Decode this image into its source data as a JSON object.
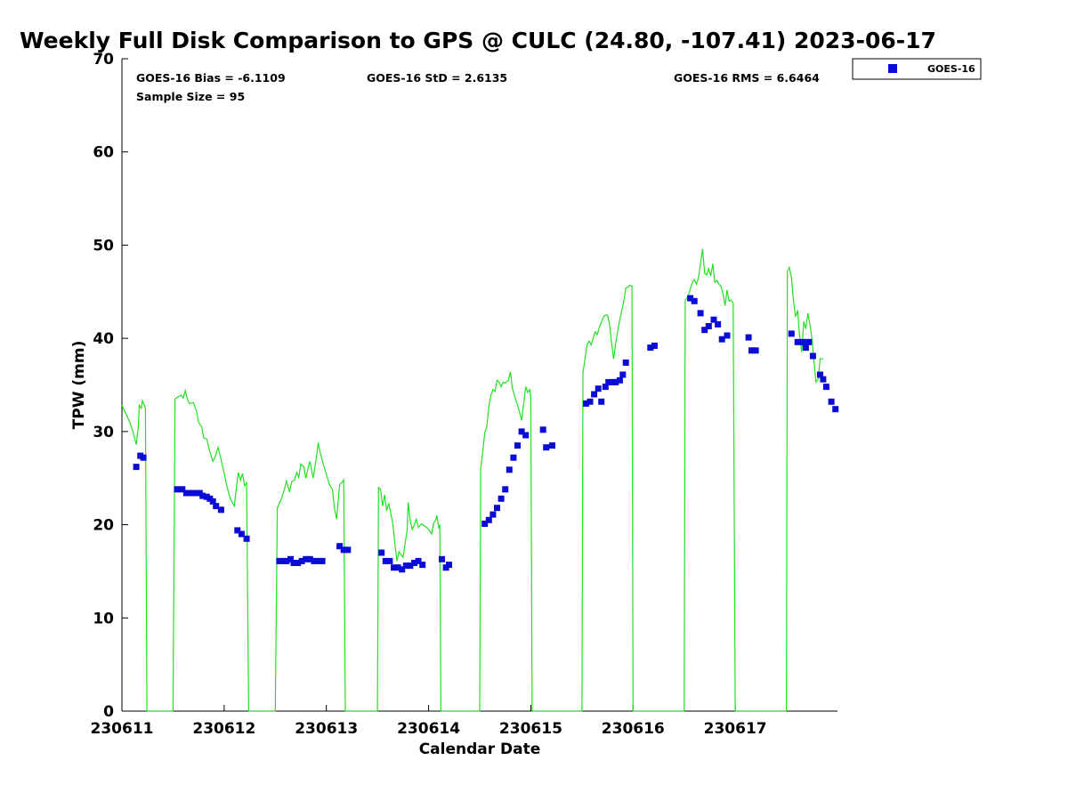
{
  "chart_data": {
    "type": "scatter",
    "title": "Weekly Full Disk Comparison to GPS @ CULC (24.80, -107.41) 2023-06-17",
    "xlabel": "Calendar Date",
    "ylabel": "TPW (mm)",
    "xlim": [
      0,
      7
    ],
    "ylim": [
      0,
      70
    ],
    "x_ticks": [
      0,
      1,
      2,
      3,
      4,
      5,
      6
    ],
    "x_tick_labels": [
      "230611",
      "230612",
      "230613",
      "230614",
      "230615",
      "230616",
      "230617"
    ],
    "y_ticks": [
      0,
      10,
      20,
      30,
      40,
      50,
      60,
      70
    ],
    "y_tick_labels": [
      "0",
      "10",
      "20",
      "30",
      "40",
      "50",
      "60",
      "70"
    ],
    "x_unit": "days since 230611",
    "stats": {
      "bias": "GOES-16 Bias = -6.1109",
      "std": "GOES-16 StD = 2.6135",
      "rms": "GOES-16 RMS = 6.6464",
      "sample": "Sample Size = 95"
    },
    "legend": {
      "placement": "outside-top-right",
      "entries": [
        "GOES-16"
      ]
    },
    "series": [
      {
        "name": "GOES-16",
        "kind": "markers",
        "color": "#0b0bd6",
        "points": [
          [
            0.14,
            26.2
          ],
          [
            0.18,
            27.4
          ],
          [
            0.21,
            27.2
          ],
          [
            0.54,
            23.8
          ],
          [
            0.59,
            23.8
          ],
          [
            0.63,
            23.4
          ],
          [
            0.68,
            23.4
          ],
          [
            0.72,
            23.4
          ],
          [
            0.76,
            23.4
          ],
          [
            0.79,
            23.1
          ],
          [
            0.83,
            23.0
          ],
          [
            0.86,
            22.8
          ],
          [
            0.89,
            22.5
          ],
          [
            0.92,
            22.0
          ],
          [
            0.97,
            21.6
          ],
          [
            1.13,
            19.4
          ],
          [
            1.17,
            19.0
          ],
          [
            1.22,
            18.5
          ],
          [
            1.54,
            16.1
          ],
          [
            1.58,
            16.1
          ],
          [
            1.61,
            16.1
          ],
          [
            1.65,
            16.3
          ],
          [
            1.68,
            15.9
          ],
          [
            1.72,
            15.9
          ],
          [
            1.76,
            16.1
          ],
          [
            1.8,
            16.3
          ],
          [
            1.84,
            16.3
          ],
          [
            1.88,
            16.1
          ],
          [
            1.92,
            16.1
          ],
          [
            1.96,
            16.1
          ],
          [
            2.13,
            17.7
          ],
          [
            2.17,
            17.3
          ],
          [
            2.21,
            17.3
          ],
          [
            2.54,
            17.0
          ],
          [
            2.58,
            16.1
          ],
          [
            2.62,
            16.1
          ],
          [
            2.66,
            15.4
          ],
          [
            2.7,
            15.4
          ],
          [
            2.74,
            15.2
          ],
          [
            2.78,
            15.6
          ],
          [
            2.82,
            15.6
          ],
          [
            2.86,
            15.9
          ],
          [
            2.9,
            16.1
          ],
          [
            2.94,
            15.7
          ],
          [
            3.13,
            16.3
          ],
          [
            3.17,
            15.4
          ],
          [
            3.2,
            15.7
          ],
          [
            3.55,
            20.1
          ],
          [
            3.59,
            20.5
          ],
          [
            3.63,
            21.1
          ],
          [
            3.67,
            21.8
          ],
          [
            3.71,
            22.8
          ],
          [
            3.75,
            23.8
          ],
          [
            3.79,
            25.9
          ],
          [
            3.83,
            27.2
          ],
          [
            3.87,
            28.5
          ],
          [
            3.91,
            30.0
          ],
          [
            3.95,
            29.6
          ],
          [
            4.12,
            30.2
          ],
          [
            4.15,
            28.3
          ],
          [
            4.21,
            28.5
          ],
          [
            4.54,
            33.0
          ],
          [
            4.58,
            33.2
          ],
          [
            4.62,
            34.0
          ],
          [
            4.66,
            34.6
          ],
          [
            4.69,
            33.2
          ],
          [
            4.73,
            34.8
          ],
          [
            4.76,
            35.3
          ],
          [
            4.8,
            35.3
          ],
          [
            4.83,
            35.3
          ],
          [
            4.87,
            35.5
          ],
          [
            4.9,
            36.1
          ],
          [
            4.93,
            37.4
          ],
          [
            5.17,
            39.0
          ],
          [
            5.21,
            39.2
          ],
          [
            5.56,
            44.3
          ],
          [
            5.6,
            44.0
          ],
          [
            5.66,
            42.7
          ],
          [
            5.7,
            40.9
          ],
          [
            5.74,
            41.3
          ],
          [
            5.79,
            42.0
          ],
          [
            5.83,
            41.5
          ],
          [
            5.87,
            39.9
          ],
          [
            5.92,
            40.3
          ],
          [
            6.13,
            40.1
          ],
          [
            6.16,
            38.7
          ],
          [
            6.2,
            38.7
          ],
          [
            6.55,
            40.5
          ],
          [
            6.61,
            39.6
          ],
          [
            6.66,
            39.6
          ],
          [
            6.69,
            39.0
          ],
          [
            6.72,
            39.6
          ],
          [
            6.76,
            38.1
          ],
          [
            6.83,
            36.1
          ],
          [
            6.86,
            35.6
          ],
          [
            6.89,
            34.8
          ],
          [
            6.94,
            33.2
          ],
          [
            6.98,
            32.4
          ]
        ]
      },
      {
        "name": "",
        "kind": "line",
        "color": "#22e022",
        "points": [
          [
            0.0,
            32.8
          ],
          [
            0.04,
            31.9
          ],
          [
            0.08,
            30.9
          ],
          [
            0.11,
            29.9
          ],
          [
            0.14,
            28.6
          ],
          [
            0.16,
            30.5
          ],
          [
            0.17,
            32.8
          ],
          [
            0.19,
            32.5
          ],
          [
            0.2,
            33.3
          ],
          [
            0.22,
            32.8
          ],
          [
            0.23,
            32.5
          ],
          [
            0.245,
            0.0
          ],
          [
            0.5,
            0.0
          ],
          [
            0.52,
            33.5
          ],
          [
            0.56,
            33.8
          ],
          [
            0.58,
            33.9
          ],
          [
            0.6,
            33.6
          ],
          [
            0.62,
            34.4
          ],
          [
            0.64,
            33.5
          ],
          [
            0.66,
            33.0
          ],
          [
            0.7,
            33.1
          ],
          [
            0.73,
            32.2
          ],
          [
            0.75,
            31.0
          ],
          [
            0.78,
            30.5
          ],
          [
            0.8,
            29.3
          ],
          [
            0.83,
            29.2
          ],
          [
            0.86,
            27.8
          ],
          [
            0.89,
            26.8
          ],
          [
            0.91,
            27.2
          ],
          [
            0.94,
            28.3
          ],
          [
            0.97,
            27.0
          ],
          [
            1.0,
            25.5
          ],
          [
            1.03,
            24.0
          ],
          [
            1.06,
            22.8
          ],
          [
            1.1,
            22.0
          ],
          [
            1.12,
            24.0
          ],
          [
            1.14,
            25.6
          ],
          [
            1.16,
            24.8
          ],
          [
            1.18,
            25.5
          ],
          [
            1.2,
            24.2
          ],
          [
            1.22,
            24.5
          ],
          [
            1.24,
            0.0
          ],
          [
            1.5,
            0.0
          ],
          [
            1.52,
            21.8
          ],
          [
            1.56,
            22.8
          ],
          [
            1.59,
            23.8
          ],
          [
            1.61,
            24.7
          ],
          [
            1.64,
            23.5
          ],
          [
            1.66,
            24.6
          ],
          [
            1.69,
            24.8
          ],
          [
            1.71,
            25.6
          ],
          [
            1.73,
            25.1
          ],
          [
            1.75,
            26.5
          ],
          [
            1.78,
            26.2
          ],
          [
            1.8,
            25.0
          ],
          [
            1.82,
            26.0
          ],
          [
            1.84,
            26.8
          ],
          [
            1.87,
            25.0
          ],
          [
            1.9,
            27.0
          ],
          [
            1.92,
            28.8
          ],
          [
            1.94,
            27.7
          ],
          [
            1.97,
            26.5
          ],
          [
            2.0,
            25.4
          ],
          [
            2.03,
            24.3
          ],
          [
            2.06,
            23.8
          ],
          [
            2.08,
            21.7
          ],
          [
            2.1,
            20.6
          ],
          [
            2.13,
            24.3
          ],
          [
            2.15,
            24.5
          ],
          [
            2.17,
            24.8
          ],
          [
            2.185,
            0.0
          ],
          [
            2.5,
            0.0
          ],
          [
            2.51,
            24.0
          ],
          [
            2.53,
            23.8
          ],
          [
            2.55,
            22.0
          ],
          [
            2.57,
            23.2
          ],
          [
            2.59,
            21.5
          ],
          [
            2.61,
            22.3
          ],
          [
            2.63,
            21.2
          ],
          [
            2.65,
            20.1
          ],
          [
            2.67,
            18.0
          ],
          [
            2.69,
            16.1
          ],
          [
            2.71,
            17.1
          ],
          [
            2.73,
            16.8
          ],
          [
            2.75,
            16.5
          ],
          [
            2.77,
            18.0
          ],
          [
            2.79,
            19.4
          ],
          [
            2.8,
            22.4
          ],
          [
            2.82,
            20.5
          ],
          [
            2.84,
            19.5
          ],
          [
            2.86,
            20.0
          ],
          [
            2.88,
            20.6
          ],
          [
            2.9,
            19.7
          ],
          [
            2.93,
            20.1
          ],
          [
            2.97,
            19.8
          ],
          [
            3.0,
            19.5
          ],
          [
            3.03,
            19.0
          ],
          [
            3.05,
            20.2
          ],
          [
            3.07,
            20.5
          ],
          [
            3.08,
            21.0
          ],
          [
            3.1,
            19.6
          ],
          [
            3.11,
            20.0
          ],
          [
            3.12,
            0.0
          ],
          [
            3.5,
            0.0
          ],
          [
            3.51,
            26.0
          ],
          [
            3.53,
            27.8
          ],
          [
            3.55,
            29.9
          ],
          [
            3.57,
            30.5
          ],
          [
            3.59,
            32.7
          ],
          [
            3.61,
            33.9
          ],
          [
            3.63,
            34.5
          ],
          [
            3.65,
            34.3
          ],
          [
            3.67,
            35.5
          ],
          [
            3.69,
            35.3
          ],
          [
            3.71,
            34.8
          ],
          [
            3.73,
            35.3
          ],
          [
            3.75,
            35.2
          ],
          [
            3.78,
            35.5
          ],
          [
            3.8,
            36.4
          ],
          [
            3.82,
            34.6
          ],
          [
            3.85,
            33.5
          ],
          [
            3.88,
            32.5
          ],
          [
            3.91,
            31.2
          ],
          [
            3.93,
            33.0
          ],
          [
            3.95,
            34.8
          ],
          [
            3.97,
            34.2
          ],
          [
            3.99,
            34.5
          ],
          [
            4.0,
            33.6
          ],
          [
            4.013,
            0.0
          ],
          [
            4.5,
            0.0
          ],
          [
            4.51,
            36.3
          ],
          [
            4.53,
            37.8
          ],
          [
            4.55,
            39.3
          ],
          [
            4.57,
            39.7
          ],
          [
            4.59,
            39.3
          ],
          [
            4.61,
            40.0
          ],
          [
            4.63,
            40.7
          ],
          [
            4.65,
            40.4
          ],
          [
            4.67,
            41.2
          ],
          [
            4.69,
            41.7
          ],
          [
            4.71,
            42.3
          ],
          [
            4.73,
            42.5
          ],
          [
            4.75,
            42.5
          ],
          [
            4.77,
            41.5
          ],
          [
            4.79,
            39.5
          ],
          [
            4.81,
            37.8
          ],
          [
            4.83,
            39.5
          ],
          [
            4.85,
            40.8
          ],
          [
            4.87,
            42.0
          ],
          [
            4.89,
            43.0
          ],
          [
            4.91,
            44.0
          ],
          [
            4.93,
            45.4
          ],
          [
            4.95,
            45.5
          ],
          [
            4.97,
            45.7
          ],
          [
            4.99,
            45.6
          ],
          [
            5.0,
            0.0
          ],
          [
            5.5,
            0.0
          ],
          [
            5.51,
            44.1
          ],
          [
            5.54,
            44.5
          ],
          [
            5.56,
            45.3
          ],
          [
            5.58,
            46.0
          ],
          [
            5.6,
            46.3
          ],
          [
            5.62,
            45.8
          ],
          [
            5.64,
            46.5
          ],
          [
            5.66,
            48.0
          ],
          [
            5.68,
            49.6
          ],
          [
            5.7,
            47.0
          ],
          [
            5.72,
            46.8
          ],
          [
            5.74,
            47.5
          ],
          [
            5.76,
            46.7
          ],
          [
            5.78,
            48.0
          ],
          [
            5.8,
            46.0
          ],
          [
            5.82,
            46.2
          ],
          [
            5.84,
            45.8
          ],
          [
            5.86,
            45.6
          ],
          [
            5.88,
            44.8
          ],
          [
            5.9,
            43.5
          ],
          [
            5.92,
            45.2
          ],
          [
            5.94,
            44.0
          ],
          [
            5.96,
            44.1
          ],
          [
            5.98,
            43.8
          ],
          [
            6.0,
            0.0
          ],
          [
            6.5,
            0.0
          ],
          [
            6.51,
            47.2
          ],
          [
            6.53,
            47.6
          ],
          [
            6.55,
            46.5
          ],
          [
            6.57,
            44.0
          ],
          [
            6.59,
            42.3
          ],
          [
            6.61,
            43.0
          ],
          [
            6.63,
            40.2
          ],
          [
            6.65,
            38.5
          ],
          [
            6.67,
            41.8
          ],
          [
            6.69,
            41.0
          ],
          [
            6.71,
            42.7
          ],
          [
            6.73,
            41.5
          ],
          [
            6.75,
            40.0
          ],
          [
            6.77,
            37.5
          ],
          [
            6.79,
            35.3
          ],
          [
            6.81,
            35.6
          ],
          [
            6.83,
            37.8
          ],
          [
            6.86,
            37.8
          ]
        ]
      }
    ]
  }
}
